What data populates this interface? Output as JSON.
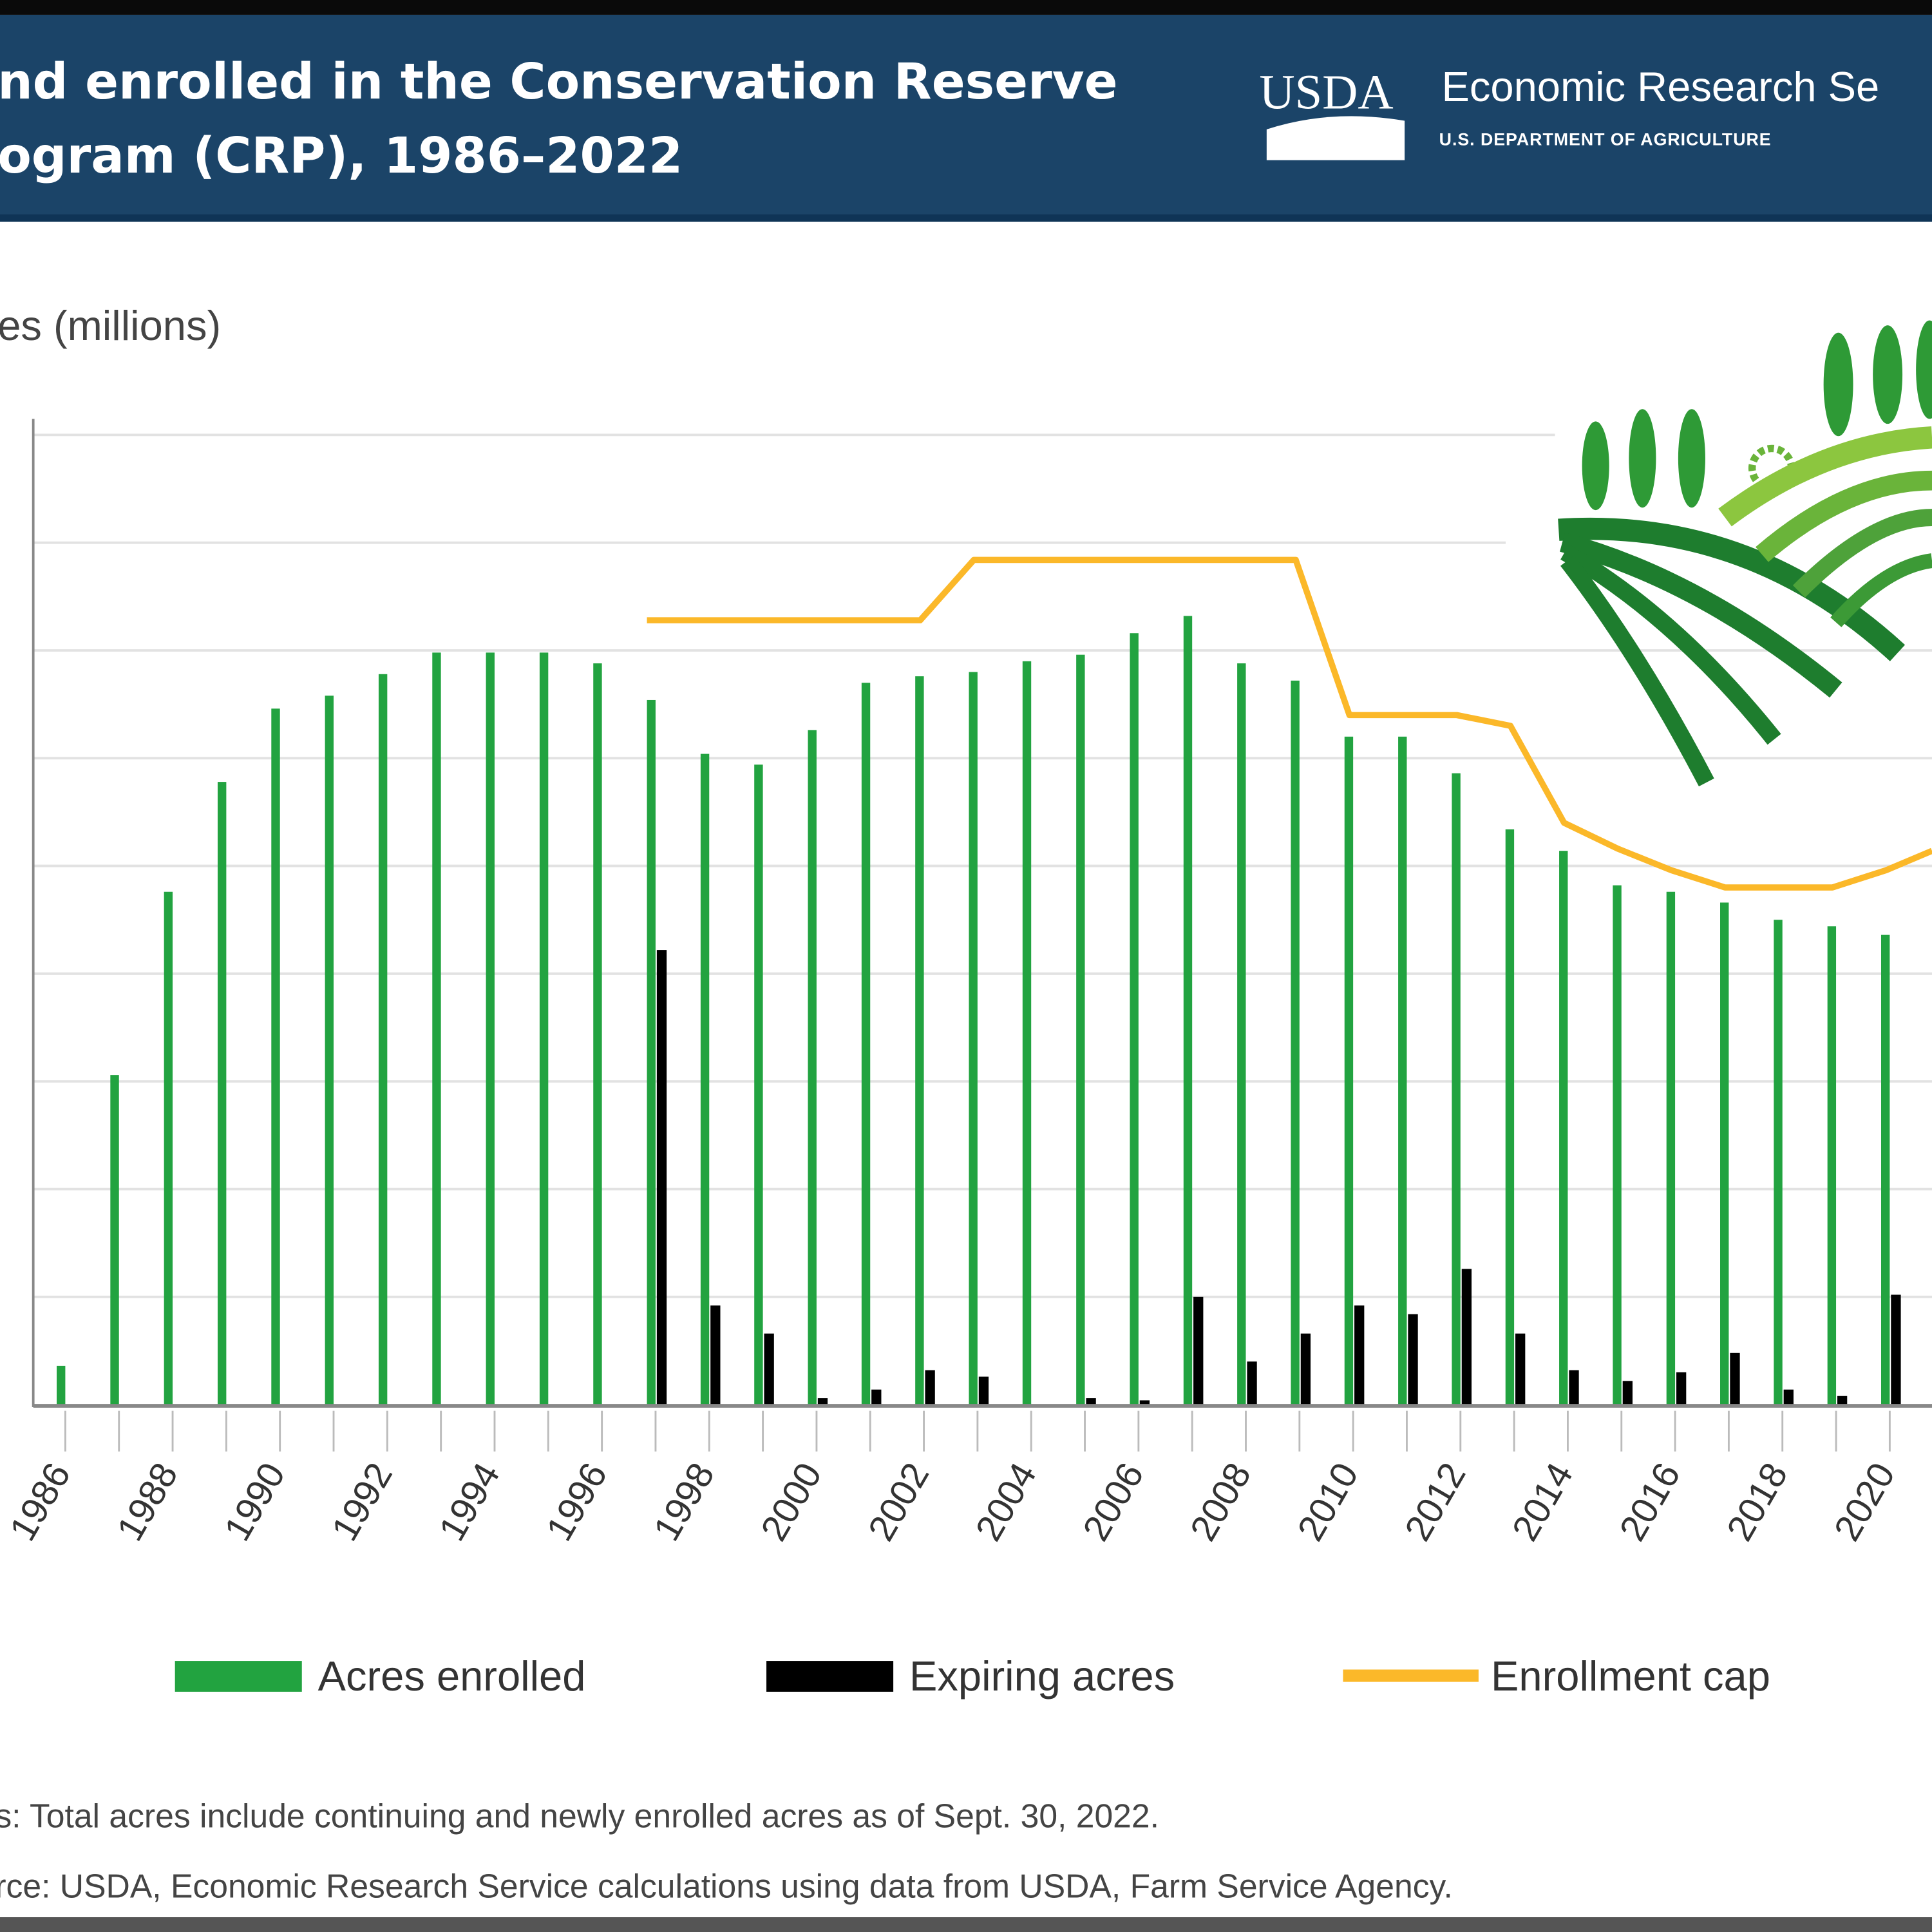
{
  "header": {
    "title_line1": "nd enrolled in the Conservation Reserve",
    "title_line2": "ogram (CRP), 1986–2022",
    "logo_text": "USDA",
    "agency": "Economic Research Se",
    "department": "U.S. DEPARTMENT OF AGRICULTURE",
    "background": "#1b4468"
  },
  "chart_data": {
    "type": "bar",
    "ylabel": "es (millions)",
    "ylim": [
      0,
      45
    ],
    "grid": true,
    "legend_position": "bottom",
    "x": [
      1986,
      1987,
      1988,
      1989,
      1990,
      1991,
      1992,
      1993,
      1994,
      1995,
      1996,
      1997,
      1998,
      1999,
      2000,
      2001,
      2002,
      2003,
      2004,
      2005,
      2006,
      2007,
      2008,
      2009,
      2010,
      2011,
      2012,
      2013,
      2014,
      2015,
      2016,
      2017,
      2018,
      2019,
      2020
    ],
    "tick_labels": [
      "1986",
      "1988",
      "1990",
      "1992",
      "1994",
      "1996",
      "1998",
      "2000",
      "2002",
      "2004",
      "2006",
      "2008",
      "2010",
      "2012",
      "2014",
      "2016",
      "2018",
      "2020"
    ],
    "series": [
      {
        "name": "Acres enrolled",
        "type": "bar",
        "color": "#22a340",
        "values": [
          1.8,
          15.3,
          23.8,
          28.9,
          32.3,
          32.9,
          33.9,
          34.9,
          34.9,
          34.9,
          34.4,
          32.7,
          30.2,
          29.7,
          31.3,
          33.5,
          33.8,
          34.0,
          34.5,
          34.8,
          35.8,
          36.6,
          34.4,
          33.6,
          31.0,
          31.0,
          29.3,
          26.7,
          25.7,
          24.1,
          23.8,
          23.3,
          22.5,
          22.2,
          21.8
        ]
      },
      {
        "name": "Expiring acres",
        "type": "bar",
        "color": "#000000",
        "values": [
          0,
          0,
          0,
          0,
          0,
          0,
          0,
          0,
          0,
          0,
          0,
          21.1,
          4.6,
          3.3,
          0.3,
          0.7,
          1.6,
          1.3,
          0,
          0.3,
          0.2,
          5.0,
          2.0,
          3.3,
          4.6,
          4.2,
          6.3,
          3.3,
          1.6,
          1.1,
          1.5,
          2.4,
          0.7,
          0.4,
          5.1
        ]
      },
      {
        "name": "Enrollment cap",
        "type": "line",
        "color": "#fbb829",
        "values": [
          null,
          null,
          null,
          null,
          null,
          null,
          null,
          null,
          null,
          null,
          null,
          36.4,
          36.4,
          36.4,
          36.4,
          36.4,
          36.4,
          39.2,
          39.2,
          39.2,
          39.2,
          39.2,
          39.2,
          39.2,
          32.0,
          32.0,
          32.0,
          31.5,
          27.0,
          25.8,
          24.8,
          24.0,
          24.0,
          24.0,
          24.8
        ]
      }
    ]
  },
  "notes": {
    "note": "s: Total acres include continuing and newly enrolled acres as of Sept. 30, 2022.",
    "source": "rce: USDA, Economic Research Service calculations using data from USDA, Farm Service Agency."
  }
}
